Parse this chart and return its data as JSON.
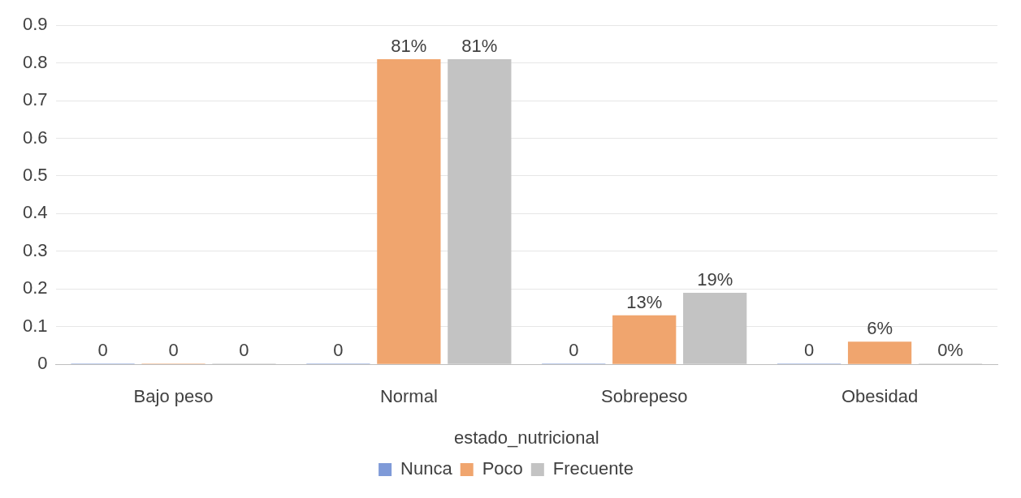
{
  "chart_data": {
    "type": "bar",
    "xlabel": "estado_nutricional",
    "categories": [
      "Bajo peso",
      "Normal",
      "Sobrepeso",
      "Obesidad"
    ],
    "series": [
      {
        "name": "Nunca",
        "color": "#7f9ad8",
        "values": [
          0,
          0,
          0,
          0
        ],
        "value_labels": [
          "0",
          "0",
          "0",
          "0"
        ]
      },
      {
        "name": "Poco",
        "color": "#f0a56e",
        "values": [
          0,
          0.81,
          0.13,
          0.06
        ],
        "value_labels": [
          "0",
          "81%",
          "13%",
          "6%"
        ]
      },
      {
        "name": "Frecuente",
        "color": "#c3c3c3",
        "values": [
          0,
          0.81,
          0.19,
          0
        ],
        "value_labels": [
          "0",
          "81%",
          "19%",
          "0%"
        ]
      }
    ],
    "ylim": [
      0,
      0.9
    ],
    "yticks": [
      0,
      0.1,
      0.2,
      0.3,
      0.4,
      0.5,
      0.6,
      0.7,
      0.8,
      0.9
    ],
    "grid": "y",
    "legend": "bottom"
  }
}
